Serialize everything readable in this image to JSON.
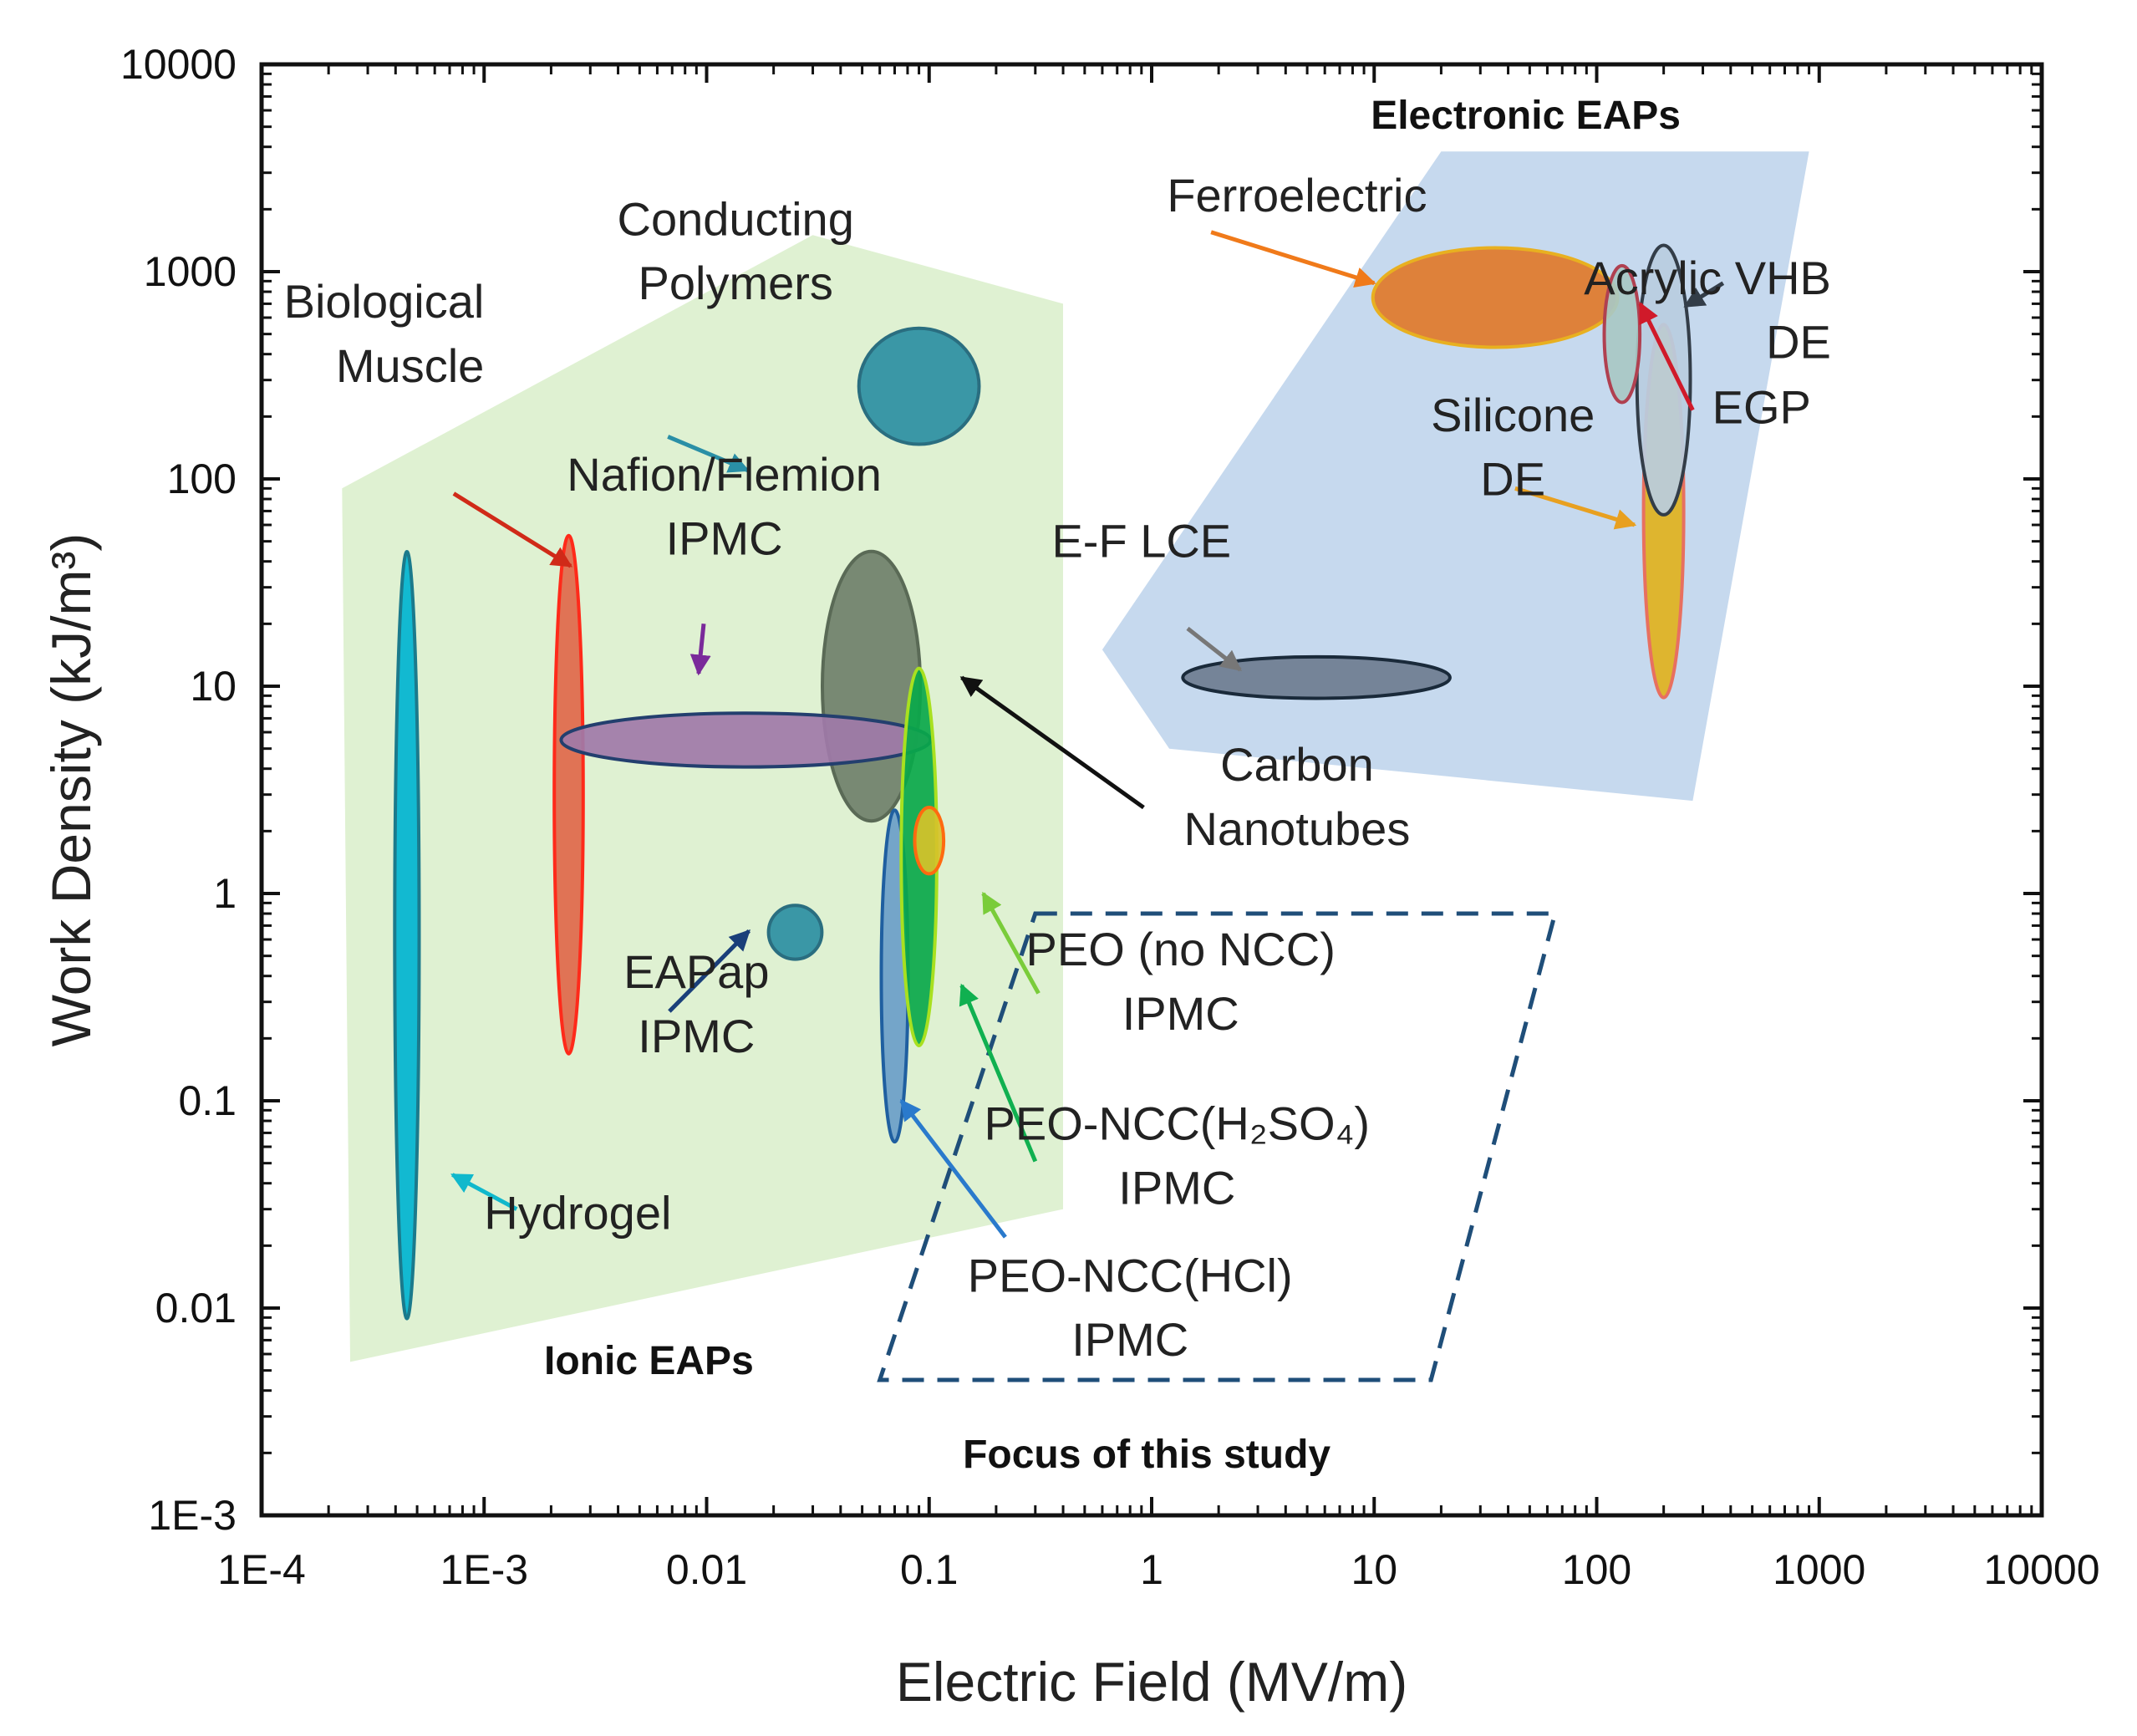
{
  "chart_data": {
    "type": "scatter",
    "title": "",
    "xlabel": "Electric Field (MV/m)",
    "ylabel": "Work Density (kJ/m³)",
    "xscale": "log",
    "yscale": "log",
    "xlim": [
      0.0001,
      10000
    ],
    "ylim": [
      0.001,
      10000
    ],
    "x_ticks": [
      {
        "v": 0.0001,
        "label": "1E-4"
      },
      {
        "v": 0.001,
        "label": "1E-3"
      },
      {
        "v": 0.01,
        "label": "0.01"
      },
      {
        "v": 0.1,
        "label": "0.1"
      },
      {
        "v": 1,
        "label": "1"
      },
      {
        "v": 10,
        "label": "10"
      },
      {
        "v": 100,
        "label": "100"
      },
      {
        "v": 1000,
        "label": "1000"
      },
      {
        "v": 10000,
        "label": "10000"
      }
    ],
    "y_ticks": [
      {
        "v": 0.001,
        "label": "1E-3"
      },
      {
        "v": 0.01,
        "label": "0.01"
      },
      {
        "v": 0.1,
        "label": "0.1"
      },
      {
        "v": 1,
        "label": "1"
      },
      {
        "v": 10,
        "label": "10"
      },
      {
        "v": 100,
        "label": "100"
      },
      {
        "v": 1000,
        "label": "1000"
      },
      {
        "v": 10000,
        "label": "10000"
      }
    ],
    "regions": [
      {
        "id": "ionic-eaps-region",
        "label": "Ionic EAPs",
        "fill": "#dff1d2",
        "polygon": [
          [
            0.00023,
            90
          ],
          [
            0.03,
            1500
          ],
          [
            0.4,
            700
          ],
          [
            0.4,
            0.03
          ],
          [
            0.00025,
            0.0055
          ]
        ]
      },
      {
        "id": "electronic-eaps-region",
        "label": "Electronic EAPs",
        "fill": "#c6d9ee",
        "polygon": [
          [
            20,
            3800
          ],
          [
            900,
            3800
          ],
          [
            270,
            2.8
          ],
          [
            1.2,
            5
          ],
          [
            0.6,
            15
          ]
        ]
      }
    ],
    "focus_box": {
      "label": "Focus of this study",
      "stroke": "#1f4e79",
      "polygon": [
        [
          0.3,
          0.8
        ],
        [
          65,
          0.8
        ],
        [
          18,
          0.0045
        ],
        [
          0.06,
          0.0045
        ]
      ]
    },
    "materials": [
      {
        "name": "Hydrogel",
        "cx": 0.00045,
        "cy": 0.63,
        "rx": 0.055,
        "ry": 1.85,
        "fill": "#00b4d0",
        "stroke": "#1b7a8c"
      },
      {
        "name": "Biological Muscle",
        "cx": 0.0024,
        "cy": 3.0,
        "rx": 0.065,
        "ry": 1.25,
        "fill": "#e0684a",
        "stroke": "#ff2a1a"
      },
      {
        "name": "Carbon Nanotubes",
        "cx": 0.055,
        "cy": 10,
        "rx": 0.22,
        "ry": 0.65,
        "fill": "#6f806a",
        "stroke": "#5a6a56"
      },
      {
        "name": "Nafion/Flemion IPMC",
        "cx": 0.015,
        "cy": 5.5,
        "rx": 0.83,
        "ry": 0.13,
        "fill": "#9f7aa8",
        "stroke": "#233f6e"
      },
      {
        "name": "Conducting Polymers",
        "cx": 0.09,
        "cy": 280,
        "rx": 0.27,
        "ry": 0.28,
        "fill": "#2b8fa2",
        "stroke": "#2a6e80"
      },
      {
        "name": "EAPap IPMC",
        "cx": 0.025,
        "cy": 0.65,
        "rx": 0.12,
        "ry": 0.13,
        "fill": "#2b8fa2",
        "stroke": "#2a6e80"
      },
      {
        "name": "PEO-NCC(HCl) IPMC",
        "cx": 0.07,
        "cy": 0.4,
        "rx": 0.06,
        "ry": 0.8,
        "fill": "#6a9ec8",
        "stroke": "#1f5fa0"
      },
      {
        "name": "PEO-NCC(H2SO4) IPMC",
        "cx": 0.09,
        "cy": 1.5,
        "rx": 0.08,
        "ry": 0.91,
        "fill": "#0aa84a",
        "stroke": "#a8e020"
      },
      {
        "name": "PEO (no NCC) IPMC",
        "cx": 0.1,
        "cy": 1.8,
        "rx": 0.065,
        "ry": 0.16,
        "fill": "#d6c22a",
        "stroke": "#ff6a10"
      },
      {
        "name": "E-F LCE",
        "cx": 5.5,
        "cy": 11,
        "rx": 0.6,
        "ry": 0.1,
        "fill": "#6e7d90",
        "stroke": "#1a2a3a"
      },
      {
        "name": "Ferroelectric",
        "cx": 35,
        "cy": 750,
        "rx": 0.55,
        "ry": 0.24,
        "fill": "#e07a2a",
        "stroke": "#e8b020"
      },
      {
        "name": "Silicone DE",
        "cx": 200,
        "cy": 70,
        "rx": 0.09,
        "ry": 0.9,
        "fill": "#e0b21e",
        "stroke": "#e87060"
      },
      {
        "name": "Acrylic VHB DE",
        "cx": 200,
        "cy": 300,
        "rx": 0.12,
        "ry": 0.65,
        "fill": "#b8cde0",
        "stroke": "#333d48"
      },
      {
        "name": "EGP",
        "cx": 130,
        "cy": 500,
        "rx": 0.08,
        "ry": 0.33,
        "fill": "#a8c8c4",
        "stroke": "#b04050"
      }
    ],
    "annotations": [
      {
        "id": "label-conducting-polymers",
        "lines": [
          "Conducting",
          "Polymers"
        ],
        "x": 0.0135,
        "y": 1500,
        "anchor": "middle",
        "lh": 0.31
      },
      {
        "id": "label-biological-muscle",
        "lines": [
          "Biological",
          "Muscle"
        ],
        "x": 0.001,
        "y": 600,
        "anchor": "end",
        "lh": 0.31
      },
      {
        "id": "label-nafion-ipmc",
        "lines": [
          "Nafion/Flemion",
          "IPMC"
        ],
        "x": 0.012,
        "y": 88,
        "anchor": "middle",
        "lh": 0.31
      },
      {
        "id": "label-carbon-nanotubes",
        "lines": [
          "Carbon",
          "Nanotubes"
        ],
        "x": 4.5,
        "y": 3.5,
        "anchor": "middle",
        "lh": 0.31
      },
      {
        "id": "label-eapap-ipmc",
        "lines": [
          "EAPap",
          "IPMC"
        ],
        "x": 0.009,
        "y": 0.35,
        "anchor": "middle",
        "lh": 0.31
      },
      {
        "id": "label-hydrogel",
        "lines": [
          "Hydrogel"
        ],
        "x": 0.001,
        "y": 0.024,
        "anchor": "start",
        "lh": 0.31
      },
      {
        "id": "label-peo-no-ncc",
        "lines": [
          "PEO (no NCC)",
          "IPMC"
        ],
        "x": 1.35,
        "y": 0.45,
        "anchor": "middle",
        "lh": 0.31
      },
      {
        "id": "label-peo-ncc-h2so4",
        "lines": [
          "PEO-NCC(H₂SO₄)",
          "IPMC"
        ],
        "x": 1.3,
        "y": 0.065,
        "anchor": "middle",
        "lh": 0.31
      },
      {
        "id": "label-peo-ncc-hcl",
        "lines": [
          "PEO-NCC(HCl)",
          "IPMC"
        ],
        "x": 0.8,
        "y": 0.012,
        "anchor": "middle",
        "lh": 0.31
      },
      {
        "id": "label-ferroelectric",
        "lines": [
          "Ferroelectric"
        ],
        "x": 4.5,
        "y": 1950,
        "anchor": "middle",
        "lh": 0.31
      },
      {
        "id": "label-acrylic-vhb-de",
        "lines": [
          "Acrylic VHB",
          "DE"
        ],
        "x": 1130,
        "y": 780,
        "anchor": "end",
        "lh": 0.31
      },
      {
        "id": "label-egp",
        "lines": [
          "EGP"
        ],
        "x": 330,
        "y": 185,
        "anchor": "start",
        "lh": 0.31
      },
      {
        "id": "label-silicone-de",
        "lines": [
          "Silicone",
          "DE"
        ],
        "x": 42,
        "y": 170,
        "anchor": "middle",
        "lh": 0.31
      },
      {
        "id": "label-e-f-lce",
        "lines": [
          "E-F LCE"
        ],
        "x": 0.9,
        "y": 42,
        "anchor": "middle",
        "lh": 0.31
      },
      {
        "id": "label-ionic-eaps",
        "lines": [
          "Ionic EAPs"
        ],
        "x": 0.0055,
        "y": 0.0048,
        "anchor": "middle",
        "bold": true,
        "lh": 0.31
      },
      {
        "id": "label-electronic-eaps",
        "lines": [
          "Electronic EAPs"
        ],
        "x": 48,
        "y": 4900,
        "anchor": "middle",
        "bold": true,
        "lh": 0.31
      },
      {
        "id": "label-focus-study",
        "lines": [
          "Focus of this study"
        ],
        "x": 0.95,
        "y": 0.0017,
        "anchor": "middle",
        "bold": true,
        "lh": 0.31
      }
    ],
    "arrows": [
      {
        "id": "arrow-conducting-polymers",
        "from": [
          0.0067,
          160
        ],
        "to": [
          0.0153,
          110
        ],
        "color": "#2a8fa6"
      },
      {
        "id": "arrow-biological-muscle",
        "from": [
          0.00073,
          85
        ],
        "to": [
          0.00245,
          38
        ],
        "color": "#d02a18"
      },
      {
        "id": "arrow-nafion-ipmc",
        "from": [
          0.0097,
          20
        ],
        "to": [
          0.0092,
          11.5
        ],
        "color": "#7a2a9a"
      },
      {
        "id": "arrow-carbon-nanotubes",
        "from": [
          0.92,
          2.6
        ],
        "to": [
          0.14,
          11
        ],
        "color": "#111111"
      },
      {
        "id": "arrow-eapap-ipmc",
        "from": [
          0.0068,
          0.27
        ],
        "to": [
          0.0155,
          0.66
        ],
        "color": "#1a3f7a"
      },
      {
        "id": "arrow-hydrogel",
        "from": [
          0.0014,
          0.03
        ],
        "to": [
          0.00072,
          0.044
        ],
        "color": "#10b8cc"
      },
      {
        "id": "arrow-peo-no-ncc",
        "from": [
          0.31,
          0.33
        ],
        "to": [
          0.175,
          1.0
        ],
        "color": "#7acc3a"
      },
      {
        "id": "arrow-peo-ncc-h2so4",
        "from": [
          0.3,
          0.051
        ],
        "to": [
          0.14,
          0.36
        ],
        "color": "#10b050"
      },
      {
        "id": "arrow-peo-ncc-hcl",
        "from": [
          0.22,
          0.022
        ],
        "to": [
          0.075,
          0.1
        ],
        "color": "#2a7acc"
      },
      {
        "id": "arrow-ferroelectric",
        "from": [
          1.85,
          1550
        ],
        "to": [
          10,
          880
        ],
        "color": "#f07a1a"
      },
      {
        "id": "arrow-acrylic-vhb-de",
        "from": [
          370,
          880
        ],
        "to": [
          250,
          680
        ],
        "color": "#333d48"
      },
      {
        "id": "arrow-egp",
        "from": [
          270,
          215
        ],
        "to": [
          157,
          700
        ],
        "color": "#d01a2a"
      },
      {
        "id": "arrow-silicone-de",
        "from": [
          43,
          90
        ],
        "to": [
          148,
          60
        ],
        "color": "#e8a020"
      },
      {
        "id": "arrow-e-f-lce",
        "from": [
          1.45,
          19
        ],
        "to": [
          2.5,
          12
        ],
        "color": "#777777"
      }
    ]
  }
}
